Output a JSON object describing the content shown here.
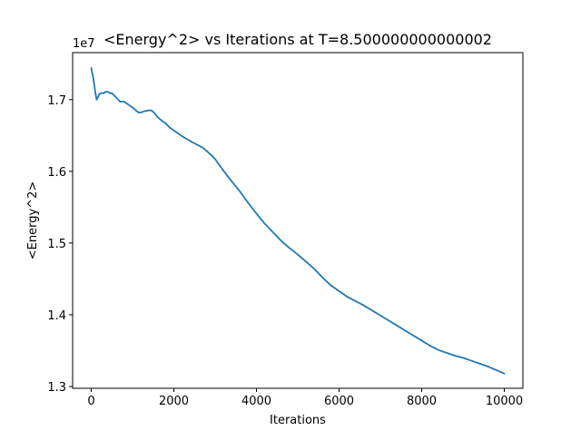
{
  "chart_data": {
    "type": "line",
    "title": "<Energy^2> vs Iterations at T=8.500000000000002",
    "xlabel": "Iterations",
    "ylabel": "<Energy^2>",
    "y_offset_label": "1e7",
    "xlim": [
      -450,
      10450
    ],
    "ylim": [
      1.2975,
      1.7655
    ],
    "x_ticks": [
      0,
      2000,
      4000,
      6000,
      8000,
      10000
    ],
    "x_tick_labels": [
      "0",
      "2000",
      "4000",
      "6000",
      "8000",
      "10000"
    ],
    "y_ticks": [
      1.3,
      1.4,
      1.5,
      1.6,
      1.7
    ],
    "y_tick_labels": [
      "1.3",
      "1.4",
      "1.5",
      "1.6",
      "1.7"
    ],
    "grid": false,
    "legend": "none",
    "series": [
      {
        "color": "#1f77b4",
        "x": [
          0,
          50,
          100,
          130,
          160,
          200,
          250,
          300,
          350,
          400,
          450,
          500,
          550,
          600,
          650,
          700,
          750,
          800,
          900,
          1000,
          1100,
          1150,
          1200,
          1300,
          1400,
          1450,
          1500,
          1550,
          1600,
          1700,
          1800,
          1900,
          2000,
          2200,
          2400,
          2500,
          2600,
          2700,
          2800,
          2900,
          3000,
          3100,
          3200,
          3400,
          3600,
          3800,
          4000,
          4200,
          4400,
          4600,
          4800,
          5000,
          5200,
          5400,
          5600,
          5800,
          6000,
          6200,
          6400,
          6600,
          6800,
          7000,
          7200,
          7400,
          7600,
          7800,
          8000,
          8200,
          8400,
          8600,
          8800,
          9000,
          9200,
          9400,
          9600,
          9800,
          10000
        ],
        "y": [
          1.744,
          1.73,
          1.71,
          1.7,
          1.703,
          1.708,
          1.709,
          1.709,
          1.711,
          1.711,
          1.709,
          1.709,
          1.706,
          1.703,
          1.7,
          1.697,
          1.697,
          1.697,
          1.693,
          1.689,
          1.684,
          1.682,
          1.682,
          1.684,
          1.685,
          1.685,
          1.683,
          1.68,
          1.676,
          1.671,
          1.667,
          1.661,
          1.657,
          1.649,
          1.642,
          1.639,
          1.636,
          1.633,
          1.628,
          1.623,
          1.617,
          1.609,
          1.601,
          1.586,
          1.572,
          1.556,
          1.541,
          1.527,
          1.515,
          1.503,
          1.493,
          1.484,
          1.474,
          1.464,
          1.452,
          1.441,
          1.433,
          1.425,
          1.419,
          1.413,
          1.406,
          1.399,
          1.392,
          1.385,
          1.378,
          1.371,
          1.364,
          1.357,
          1.351,
          1.347,
          1.343,
          1.34,
          1.336,
          1.332,
          1.328,
          1.323,
          1.318
        ]
      }
    ]
  }
}
